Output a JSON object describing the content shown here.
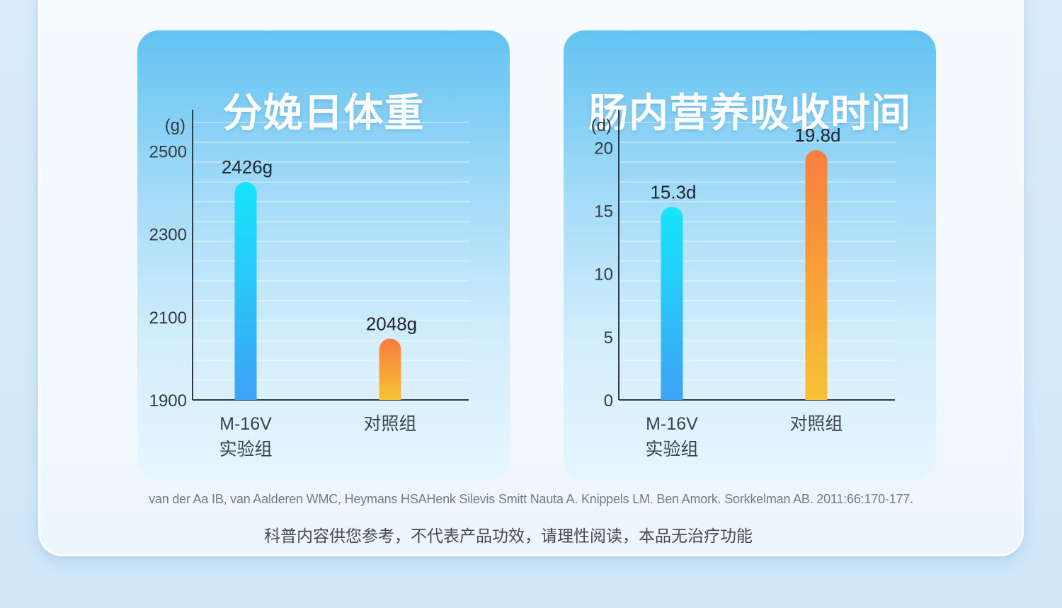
{
  "chart_data": [
    {
      "type": "bar",
      "title": "分娩日体重",
      "unit_label": "(g)",
      "categories": [
        [
          "M-16V",
          "实验组"
        ],
        [
          "对照组"
        ]
      ],
      "values": [
        2426,
        2048
      ],
      "data_labels": [
        "2426g",
        "2048g"
      ],
      "ylim": [
        1900,
        2600
      ],
      "yticks": [
        1900,
        2100,
        2300,
        2500
      ],
      "grid": true,
      "bar_colors": [
        [
          "#3fa2f5",
          "#16e6fb"
        ],
        [
          "#f7c233",
          "#f97d3f"
        ]
      ]
    },
    {
      "type": "bar",
      "title": "肠内营养吸收时间",
      "unit_label": "(d)",
      "categories": [
        [
          "M-16V",
          "实验组"
        ],
        [
          "对照组"
        ]
      ],
      "values": [
        15.3,
        19.8
      ],
      "data_labels": [
        "15.3d",
        "19.8d"
      ],
      "ylim": [
        0,
        23
      ],
      "yticks": [
        0,
        5,
        10,
        15,
        20
      ],
      "grid": true,
      "bar_colors": [
        [
          "#3fa2f5",
          "#16e6fb"
        ],
        [
          "#f7c233",
          "#f97d3f"
        ]
      ]
    }
  ],
  "footnote": "van der Aa IB, van Aalderen WMC, Heymans HSAHenk Silevis Smitt Nauta A. Knippels LM. Ben Amork. Sorkkelman AB.  2011:66:170-177.",
  "disclaimer": "科普内容供您参考，不代表产品功效，请理性阅读，本品无治疗功能"
}
